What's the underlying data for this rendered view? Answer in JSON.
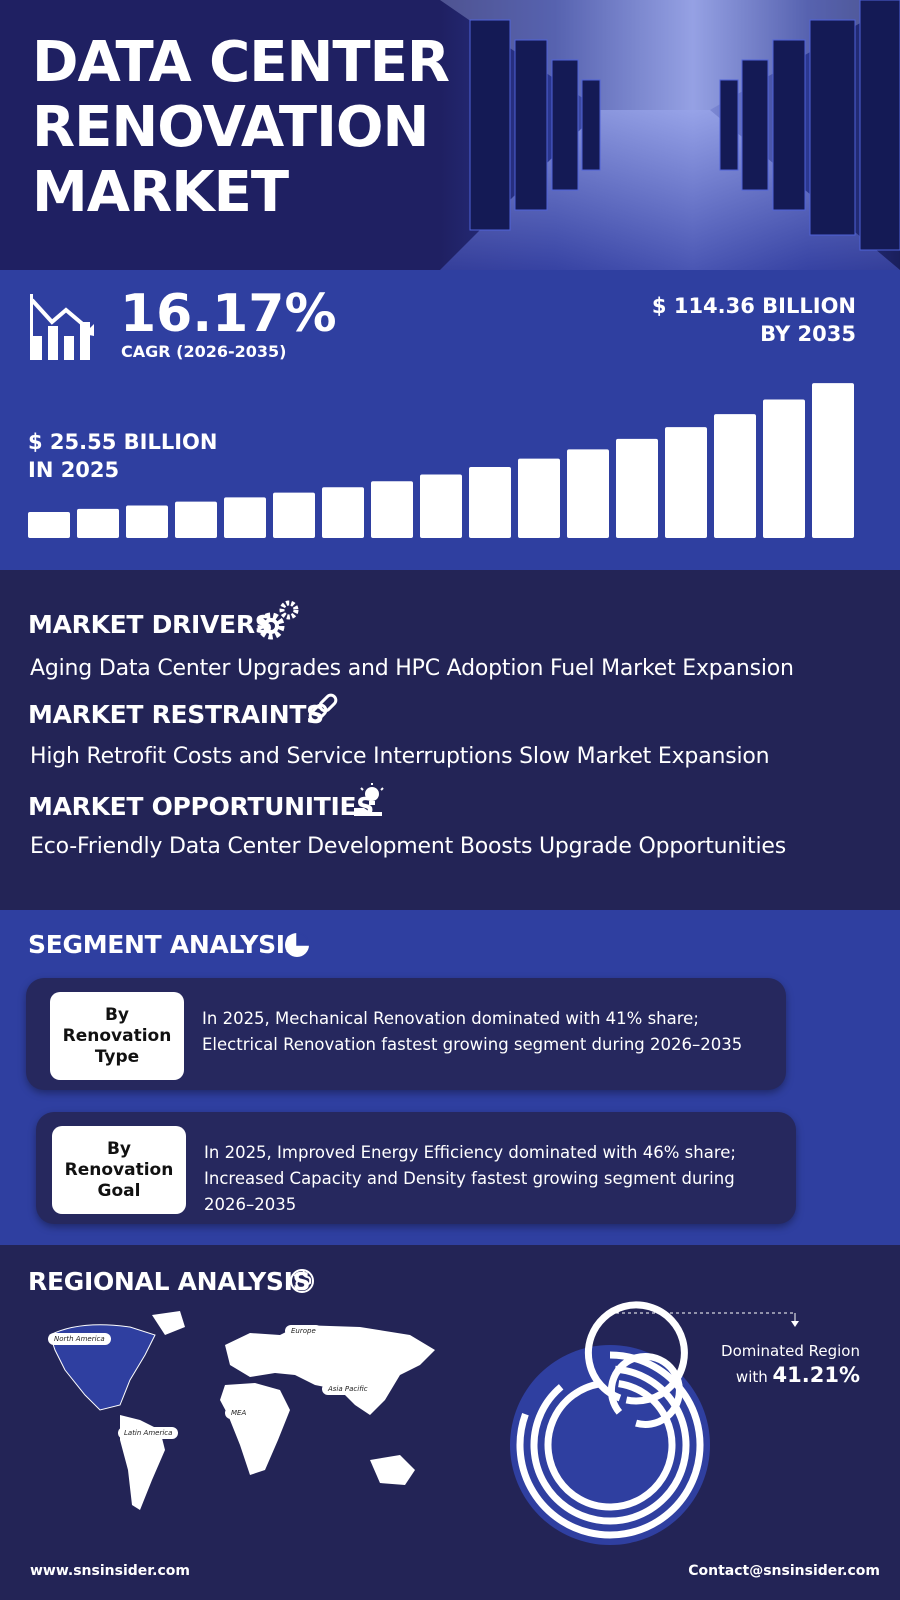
{
  "header": {
    "title_lines": [
      "DATA CENTER",
      "RENOVATION",
      "MARKET"
    ]
  },
  "stats": {
    "cagr_value": "16.17%",
    "cagr_label": "CAGR (2026-2035)",
    "end_value": "$ 114.36 BILLION",
    "end_label": "BY 2035",
    "start_value": "$ 25.55 BILLION",
    "start_label": "IN 2025"
  },
  "market": {
    "drivers": {
      "heading": "MARKET DRIVERS",
      "text": "Aging Data Center Upgrades and HPC Adoption Fuel Market Expansion"
    },
    "restraints": {
      "heading": "MARKET RESTRAINTS",
      "text": "High Retrofit Costs and Service Interruptions Slow Market Expansion"
    },
    "opportunities": {
      "heading": "MARKET OPPORTUNITIES",
      "text": "Eco-Friendly Data Center Development Boosts Upgrade Opportunities"
    }
  },
  "segment": {
    "heading": "SEGMENT ANALYSIS",
    "items": [
      {
        "label": "By Renovation Type",
        "text": "In 2025, Mechanical Renovation dominated with 41% share; Electrical Renovation fastest growing segment during 2026–2035"
      },
      {
        "label": "By Renovation Goal",
        "text": "In 2025, Improved Energy Efficiency dominated with 46% share; Increased Capacity and Density fastest growing segment during 2026–2035"
      }
    ]
  },
  "regional": {
    "heading": "REGIONAL ANALYSIS",
    "map_labels": [
      "North America",
      "Europe",
      "Asia Pacific",
      "MEA",
      "Latin America"
    ],
    "dominated_label": "Dominated Region",
    "dominated_prefix": "with",
    "dominated_value": "41.21%"
  },
  "footer": {
    "website": "www.snsinsider.com",
    "contact": "Contact@snsinsider.com"
  }
}
